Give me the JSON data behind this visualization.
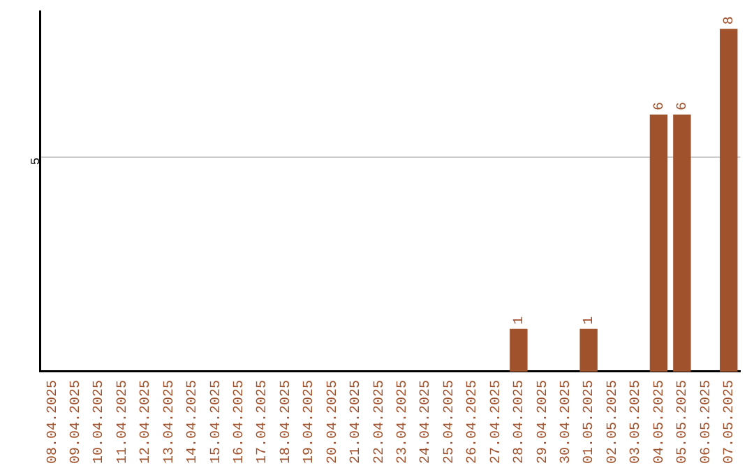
{
  "chart_data": {
    "type": "bar",
    "categories": [
      "08.04.2025",
      "09.04.2025",
      "10.04.2025",
      "11.04.2025",
      "12.04.2025",
      "13.04.2025",
      "14.04.2025",
      "15.04.2025",
      "16.04.2025",
      "17.04.2025",
      "18.04.2025",
      "19.04.2025",
      "20.04.2025",
      "21.04.2025",
      "22.04.2025",
      "23.04.2025",
      "24.04.2025",
      "25.04.2025",
      "26.04.2025",
      "27.04.2025",
      "28.04.2025",
      "29.04.2025",
      "30.04.2025",
      "01.05.2025",
      "02.05.2025",
      "03.05.2025",
      "04.05.2025",
      "05.05.2025",
      "06.05.2025",
      "07.05.2025"
    ],
    "values": [
      null,
      null,
      null,
      null,
      null,
      null,
      null,
      null,
      null,
      null,
      null,
      null,
      null,
      null,
      null,
      null,
      null,
      null,
      null,
      null,
      1,
      null,
      null,
      1,
      null,
      null,
      6,
      6,
      null,
      8
    ],
    "data_labels": true,
    "color": "#a0522d",
    "ylim": [
      0,
      8.4
    ],
    "yticks": [
      5
    ],
    "grid": "y",
    "legend": false
  }
}
